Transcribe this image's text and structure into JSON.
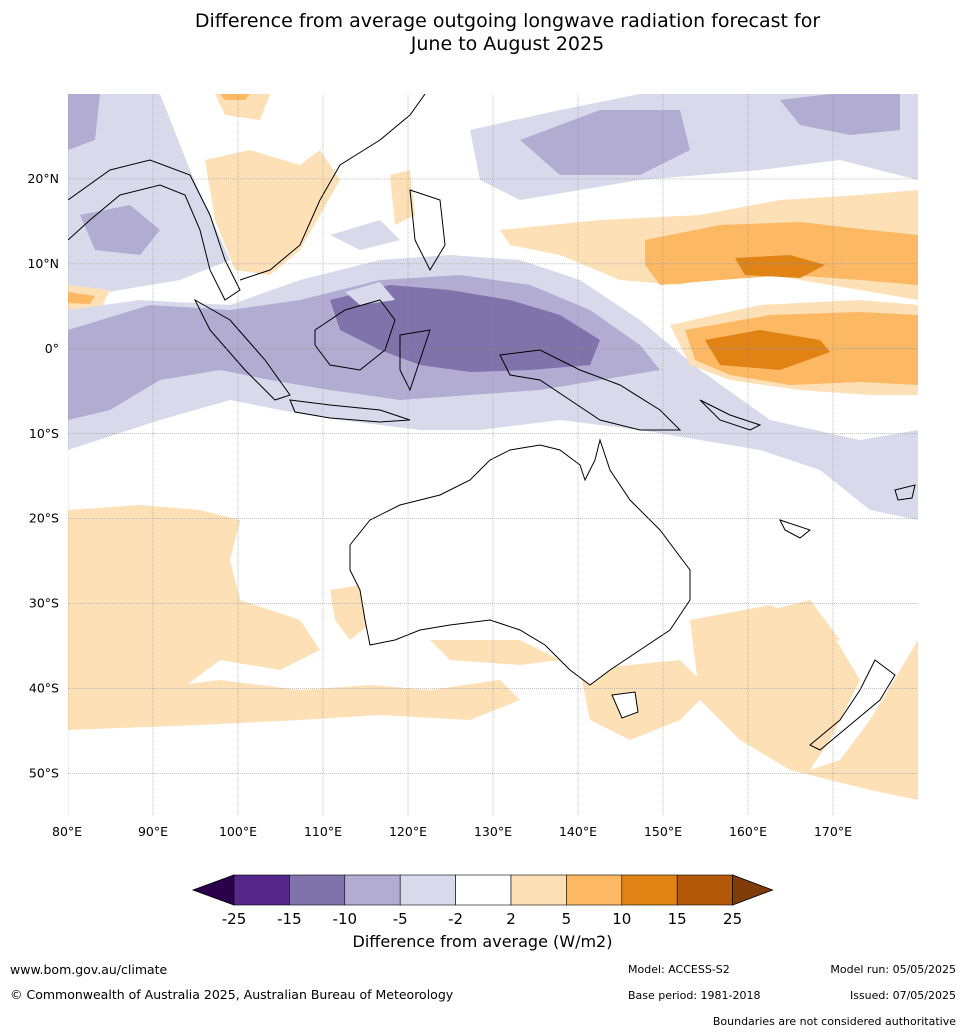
{
  "title": {
    "line1": "Difference from average outgoing longwave radiation forecast for",
    "line2": "June to August 2025"
  },
  "map": {
    "lon_range": [
      80,
      180
    ],
    "lat_range": [
      -55,
      30
    ],
    "lon_ticks": [
      "80°E",
      "90°E",
      "100°E",
      "110°E",
      "120°E",
      "130°E",
      "140°E",
      "150°E",
      "160°E",
      "170°E"
    ],
    "lat_ticks": [
      "20°N",
      "10°N",
      "0°",
      "10°S",
      "20°S",
      "30°S",
      "40°S",
      "50°S"
    ],
    "grid": true
  },
  "colorbar": {
    "ticks": [
      "-25",
      "-15",
      "-10",
      "-5",
      "-2",
      "2",
      "5",
      "10",
      "15",
      "25"
    ],
    "colors": [
      "#2d004b",
      "#542788",
      "#8073ac",
      "#b2abd2",
      "#d8daeb",
      "#ffffff",
      "#fee0b6",
      "#fdb863",
      "#e08214",
      "#b35806",
      "#7f3b08"
    ],
    "label": "Difference from average (W/m2)"
  },
  "footer": {
    "website": "www.bom.gov.au/climate",
    "copyright": "© Commonwealth of Australia 2025, Australian Bureau of Meteorology",
    "model": "Model: ACCESS-S2",
    "base_period": "Base period: 1981-2018",
    "model_run": "Model run: 05/05/2025",
    "issued": "Issued: 07/05/2025",
    "boundaries": "Boundaries are not considered authoritative"
  }
}
